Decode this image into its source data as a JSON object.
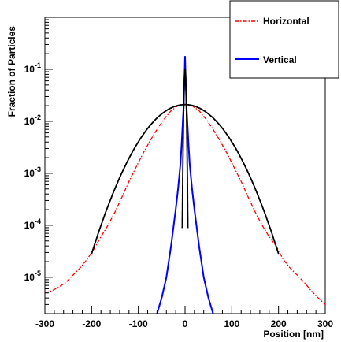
{
  "chart_data": {
    "type": "line",
    "xlabel": "Position [nm]",
    "ylabel": "Fraction of Particles",
    "xlim": [
      -300,
      300
    ],
    "ylim": [
      2e-06,
      1
    ],
    "yscale": "log",
    "x_ticks": [
      -300,
      -200,
      -100,
      0,
      100,
      200,
      300
    ],
    "y_ticks": [
      {
        "value": 1e-05,
        "base": "10",
        "exp": "-5"
      },
      {
        "value": 0.0001,
        "base": "10",
        "exp": "-4"
      },
      {
        "value": 0.001,
        "base": "10",
        "exp": "-3"
      },
      {
        "value": 0.01,
        "base": "10",
        "exp": "-2"
      },
      {
        "value": 0.1,
        "base": "10",
        "exp": "-1"
      }
    ],
    "legend_position": "top-right",
    "series": [
      {
        "name": "Horizontal",
        "color": "#ff0000",
        "style": "dash-dot",
        "x": [
          -300,
          -285,
          -270,
          -255,
          -240,
          -225,
          -210,
          -195,
          -180,
          -165,
          -150,
          -135,
          -120,
          -105,
          -90,
          -75,
          -60,
          -45,
          -30,
          -15,
          0,
          15,
          30,
          45,
          60,
          75,
          90,
          105,
          120,
          135,
          150,
          165,
          180,
          195,
          210,
          225,
          240,
          255,
          270,
          285,
          300
        ],
        "y": [
          5e-06,
          5.5e-06,
          6.5e-06,
          8e-06,
          1.1e-05,
          1.5e-05,
          2.2e-05,
          3.5e-05,
          6e-05,
          0.0001,
          0.00018,
          0.00035,
          0.0007,
          0.0013,
          0.0024,
          0.0042,
          0.007,
          0.011,
          0.016,
          0.02,
          0.021,
          0.02,
          0.016,
          0.011,
          0.007,
          0.0042,
          0.0024,
          0.0013,
          0.0007,
          0.00035,
          0.00018,
          0.0001,
          6e-05,
          4e-05,
          2.2e-05,
          1.5e-05,
          1.1e-05,
          8e-06,
          5.5e-06,
          4e-06,
          3e-06
        ]
      },
      {
        "name": "Vertical",
        "color": "#0000ff",
        "style": "solid",
        "x": [
          -60,
          -50,
          -40,
          -30,
          -20,
          -15,
          -10,
          -7,
          -5,
          -3,
          -2,
          -1,
          0,
          1,
          2,
          3,
          5,
          7,
          10,
          15,
          20,
          30,
          40,
          50,
          60
        ],
        "y": [
          2e-06,
          4e-06,
          1e-05,
          4e-05,
          0.0002,
          0.0005,
          0.0015,
          0.004,
          0.009,
          0.02,
          0.04,
          0.08,
          0.18,
          0.08,
          0.04,
          0.02,
          0.009,
          0.004,
          0.0015,
          0.0005,
          0.0002,
          4e-05,
          1e-05,
          4e-06,
          2e-06
        ]
      }
    ],
    "fits": [
      {
        "color": "#000000",
        "shape": "gaussian",
        "peak": 0.021,
        "mean": 0,
        "sigma": 55,
        "x_range": [
          -200,
          200
        ]
      },
      {
        "color": "#000000",
        "shape": "gaussian",
        "peak": 0.1,
        "mean": 0,
        "sigma": 1.6,
        "x_range": [
          -6,
          6
        ]
      }
    ]
  }
}
